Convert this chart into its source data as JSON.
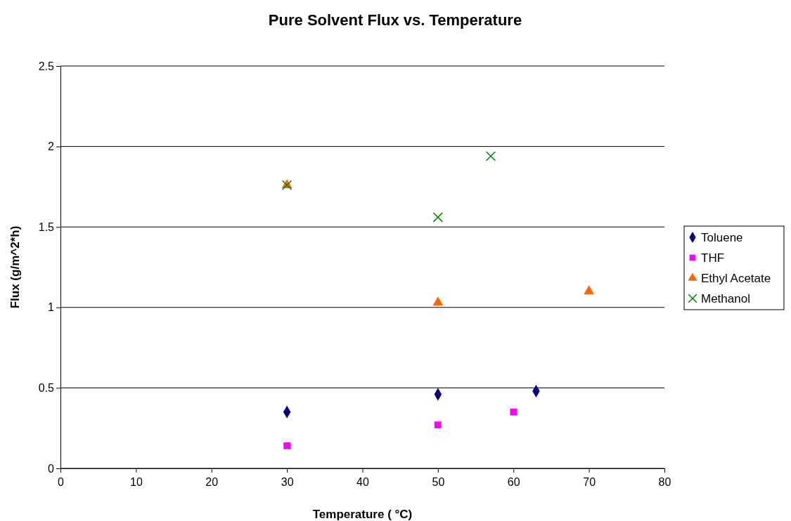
{
  "chart_data": {
    "type": "scatter",
    "title": "Pure Solvent Flux vs. Temperature",
    "xlabel": "Temperature ( °C)",
    "ylabel": "Flux (g/m^2*h)",
    "xlim": [
      0,
      80
    ],
    "xticks": [
      0,
      10,
      20,
      30,
      40,
      50,
      60,
      70,
      80
    ],
    "ylim": [
      0,
      2.5
    ],
    "yticks": [
      0,
      0.5,
      1,
      1.5,
      2,
      2.5
    ],
    "grid": "y",
    "legend": "right",
    "series": [
      {
        "name": "Toluene",
        "color": "#000080",
        "marker": "diamond",
        "x": [
          30,
          50,
          63
        ],
        "values": [
          0.35,
          0.46,
          0.48
        ]
      },
      {
        "name": "THF",
        "color": "#ff00ff",
        "marker": "square",
        "x": [
          30,
          50,
          60
        ],
        "values": [
          0.14,
          0.27,
          0.35
        ]
      },
      {
        "name": "Ethyl Acetate",
        "color": "#ff6600",
        "marker": "triangle",
        "x": [
          30,
          50,
          70
        ],
        "values": [
          1.76,
          1.03,
          1.1
        ]
      },
      {
        "name": "Methanol",
        "color": "#008000",
        "marker": "cross",
        "x": [
          30,
          50,
          57
        ],
        "values": [
          1.76,
          1.56,
          1.94
        ]
      }
    ]
  }
}
